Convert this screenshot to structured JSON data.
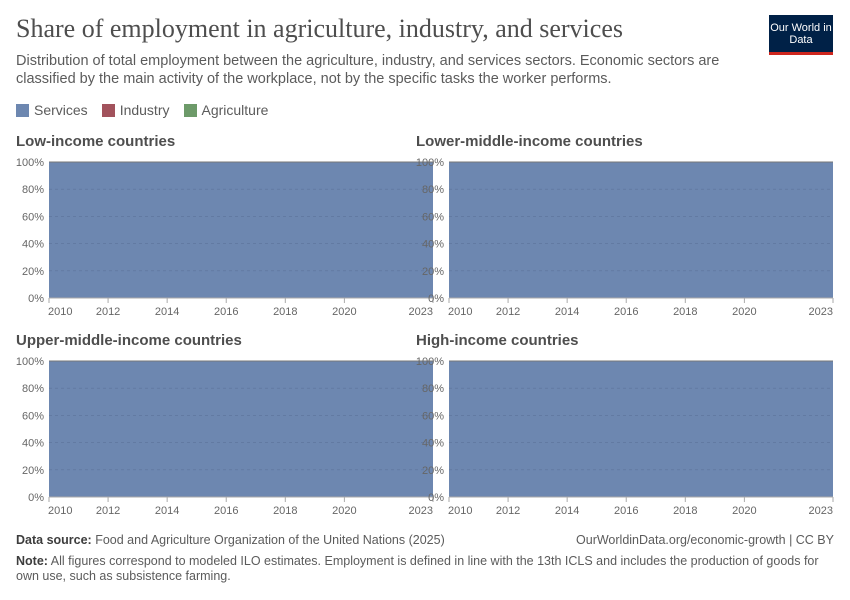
{
  "header": {
    "title": "Share of employment in agriculture, industry, and services",
    "subtitle": "Distribution of total employment between the agriculture, industry, and services sectors. Economic sectors are classified by the main activity of the workplace, not by the specific tasks the worker performs.",
    "logo": "Our World in Data"
  },
  "legend": [
    {
      "name": "Services",
      "color": "#6d87b0"
    },
    {
      "name": "Industry",
      "color": "#a2525c"
    },
    {
      "name": "Agriculture",
      "color": "#6d9a69"
    }
  ],
  "chart_data": [
    {
      "type": "area",
      "stacked": true,
      "title": "Low-income countries",
      "x": [
        2010,
        2011,
        2012,
        2013,
        2014,
        2015,
        2016,
        2017,
        2018,
        2019,
        2020,
        2021,
        2022,
        2023
      ],
      "series": [
        {
          "name": "Services",
          "values": [
            100,
            100,
            100,
            100,
            100,
            100,
            100,
            100,
            100,
            100,
            100,
            100,
            100,
            100
          ]
        },
        {
          "name": "Industry",
          "values": [
            0,
            0,
            0,
            0,
            0,
            0,
            0,
            0,
            0,
            0,
            0,
            0,
            0,
            0
          ]
        },
        {
          "name": "Agriculture",
          "values": [
            0,
            0,
            0,
            0,
            0,
            0,
            0,
            0,
            0,
            0,
            0,
            0,
            0,
            0
          ]
        }
      ],
      "xticks": [
        "2010",
        "2012",
        "2014",
        "2016",
        "2018",
        "2020",
        "2023"
      ],
      "yticks": [
        "0%",
        "20%",
        "40%",
        "60%",
        "80%",
        "100%"
      ],
      "ylim": [
        0,
        100
      ],
      "grid": true
    },
    {
      "type": "area",
      "stacked": true,
      "title": "Lower-middle-income countries",
      "x": [
        2010,
        2011,
        2012,
        2013,
        2014,
        2015,
        2016,
        2017,
        2018,
        2019,
        2020,
        2021,
        2022,
        2023
      ],
      "series": [
        {
          "name": "Services",
          "values": [
            100,
            100,
            100,
            100,
            100,
            100,
            100,
            100,
            100,
            100,
            100,
            100,
            100,
            100
          ]
        },
        {
          "name": "Industry",
          "values": [
            0,
            0,
            0,
            0,
            0,
            0,
            0,
            0,
            0,
            0,
            0,
            0,
            0,
            0
          ]
        },
        {
          "name": "Agriculture",
          "values": [
            0,
            0,
            0,
            0,
            0,
            0,
            0,
            0,
            0,
            0,
            0,
            0,
            0,
            0
          ]
        }
      ],
      "xticks": [
        "2010",
        "2012",
        "2014",
        "2016",
        "2018",
        "2020",
        "2023"
      ],
      "yticks": [
        "0%",
        "20%",
        "40%",
        "60%",
        "80%",
        "100%"
      ],
      "ylim": [
        0,
        100
      ],
      "grid": true
    },
    {
      "type": "area",
      "stacked": true,
      "title": "Upper-middle-income countries",
      "x": [
        2010,
        2011,
        2012,
        2013,
        2014,
        2015,
        2016,
        2017,
        2018,
        2019,
        2020,
        2021,
        2022,
        2023
      ],
      "series": [
        {
          "name": "Services",
          "values": [
            100,
            100,
            100,
            100,
            100,
            100,
            100,
            100,
            100,
            100,
            100,
            100,
            100,
            100
          ]
        },
        {
          "name": "Industry",
          "values": [
            0,
            0,
            0,
            0,
            0,
            0,
            0,
            0,
            0,
            0,
            0,
            0,
            0,
            0
          ]
        },
        {
          "name": "Agriculture",
          "values": [
            0,
            0,
            0,
            0,
            0,
            0,
            0,
            0,
            0,
            0,
            0,
            0,
            0,
            0
          ]
        }
      ],
      "xticks": [
        "2010",
        "2012",
        "2014",
        "2016",
        "2018",
        "2020",
        "2023"
      ],
      "yticks": [
        "0%",
        "20%",
        "40%",
        "60%",
        "80%",
        "100%"
      ],
      "ylim": [
        0,
        100
      ],
      "grid": true
    },
    {
      "type": "area",
      "stacked": true,
      "title": "High-income countries",
      "x": [
        2010,
        2011,
        2012,
        2013,
        2014,
        2015,
        2016,
        2017,
        2018,
        2019,
        2020,
        2021,
        2022,
        2023
      ],
      "series": [
        {
          "name": "Services",
          "values": [
            100,
            100,
            100,
            100,
            100,
            100,
            100,
            100,
            100,
            100,
            100,
            100,
            100,
            100
          ]
        },
        {
          "name": "Industry",
          "values": [
            0,
            0,
            0,
            0,
            0,
            0,
            0,
            0,
            0,
            0,
            0,
            0,
            0,
            0
          ]
        },
        {
          "name": "Agriculture",
          "values": [
            0,
            0,
            0,
            0,
            0,
            0,
            0,
            0,
            0,
            0,
            0,
            0,
            0,
            0
          ]
        }
      ],
      "xticks": [
        "2010",
        "2012",
        "2014",
        "2016",
        "2018",
        "2020",
        "2023"
      ],
      "yticks": [
        "0%",
        "20%",
        "40%",
        "60%",
        "80%",
        "100%"
      ],
      "ylim": [
        0,
        100
      ],
      "grid": true
    }
  ],
  "footer": {
    "source_label": "Data source:",
    "source": "Food and Agriculture Organization of the United Nations (2025)",
    "url": "OurWorldinData.org/economic-growth | CC BY",
    "note_label": "Note:",
    "note": "All figures correspond to modeled ILO estimates. Employment is defined in line with the 13th ICLS and includes the production of goods for own use, such as subsistence farming."
  }
}
